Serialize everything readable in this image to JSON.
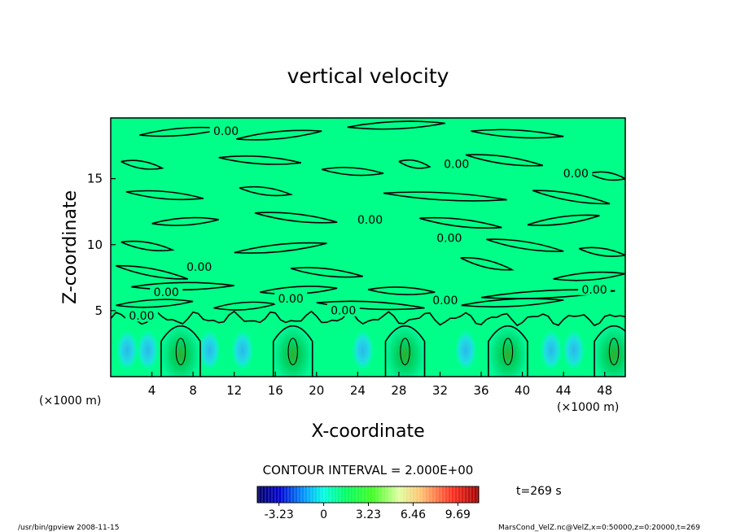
{
  "chart_data": {
    "type": "heatmap",
    "title": "vertical velocity",
    "xlabel": "X-coordinate",
    "ylabel": "Z-coordinate",
    "x_unit": "(×1000 m)",
    "x_unit_right": "(×1000 m)",
    "xlim": [
      0,
      50
    ],
    "ylim": [
      0,
      19.6
    ],
    "x_ticks": [
      4,
      8,
      12,
      16,
      20,
      24,
      28,
      32,
      36,
      40,
      44,
      48
    ],
    "y_ticks": [
      5,
      10,
      15
    ],
    "contour_interval": "CONTOUR INTERVAL = 2.000E+00",
    "zero_contour_label": "0.00",
    "zero_label_positions": [
      {
        "x": 11.2,
        "z": 18.3
      },
      {
        "x": 33.6,
        "z": 15.8
      },
      {
        "x": 45.2,
        "z": 15.1
      },
      {
        "x": 25.2,
        "z": 11.6
      },
      {
        "x": 32.9,
        "z": 10.2
      },
      {
        "x": 8.6,
        "z": 8.0
      },
      {
        "x": 5.4,
        "z": 6.1
      },
      {
        "x": 47.0,
        "z": 6.3
      },
      {
        "x": 17.5,
        "z": 5.6
      },
      {
        "x": 32.5,
        "z": 5.5
      },
      {
        "x": 3.0,
        "z": 4.3
      },
      {
        "x": 22.6,
        "z": 4.7
      }
    ],
    "updraft_centers_x": [
      6.8,
      17.7,
      28.6,
      38.6,
      48.9
    ],
    "updraft_peak_z": 1.9,
    "colorbar": {
      "min": -4.8,
      "max": 11.2,
      "tick_labels": [
        "-3.23",
        "0",
        "3.23",
        "6.46",
        "9.69"
      ],
      "tick_values": [
        -3.23,
        0,
        3.23,
        6.46,
        9.69
      ]
    },
    "time_label": "t=269 s",
    "grid": false,
    "legend": "none"
  },
  "footer": {
    "left": "/usr/bin/gpview   2008-11-15",
    "right": "MarsCond_VelZ.nc@VelZ,x=0:50000,z=0:20000,t=269"
  },
  "colors": {
    "background_field": "#00ff88",
    "contour": "#000000"
  }
}
